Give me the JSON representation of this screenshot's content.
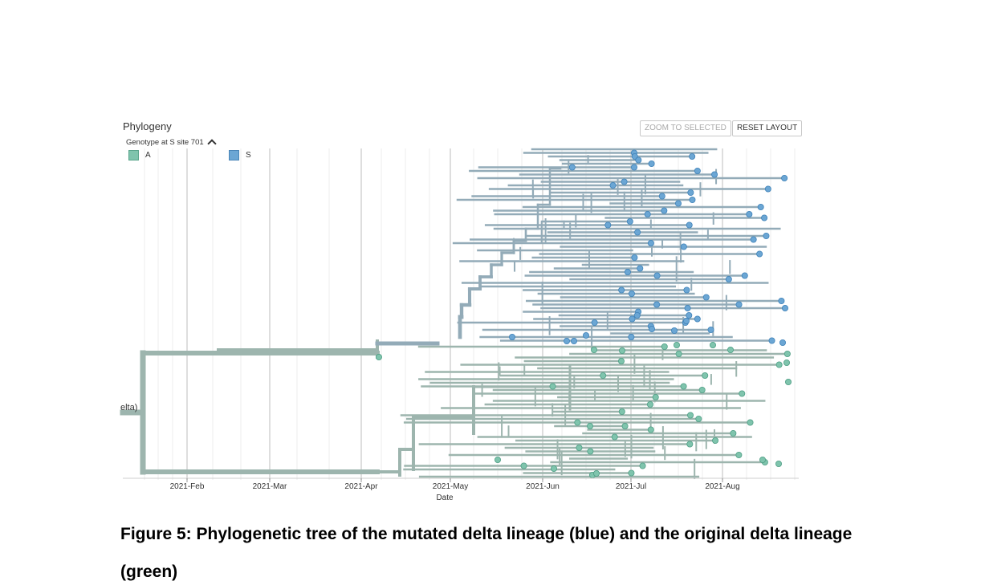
{
  "panel": {
    "title": "Phylogeny",
    "legend_title": "Genotype at S site 701",
    "legend_items": [
      {
        "label": "A",
        "color": "#7fc4ad"
      },
      {
        "label": "S",
        "color": "#6ba6d4"
      }
    ],
    "buttons": {
      "zoom_label": "ZOOM TO SELECTED",
      "reset_label": "RESET LAYOUT"
    },
    "root_label_fragment": "elta)"
  },
  "chart_data": {
    "type": "phylogenetic-tree",
    "x_axis": {
      "label": "Date",
      "ticks": [
        "2021-Feb",
        "2021-Mar",
        "2021-Apr",
        "2021-May",
        "2021-Jun",
        "2021-Jul",
        "2021-Aug"
      ]
    },
    "series": [
      {
        "name": "S",
        "color": "#6ba6d4",
        "clade": "upper"
      },
      {
        "name": "A",
        "color": "#7fc4ad",
        "clade": "lower"
      }
    ],
    "branch_color": "#9db5ae",
    "mutated_branch_color": "#93abb8"
  },
  "caption": {
    "text": "Figure 5: Phylogenetic tree of the mutated delta lineage (blue) and the original delta lineage (green)"
  }
}
